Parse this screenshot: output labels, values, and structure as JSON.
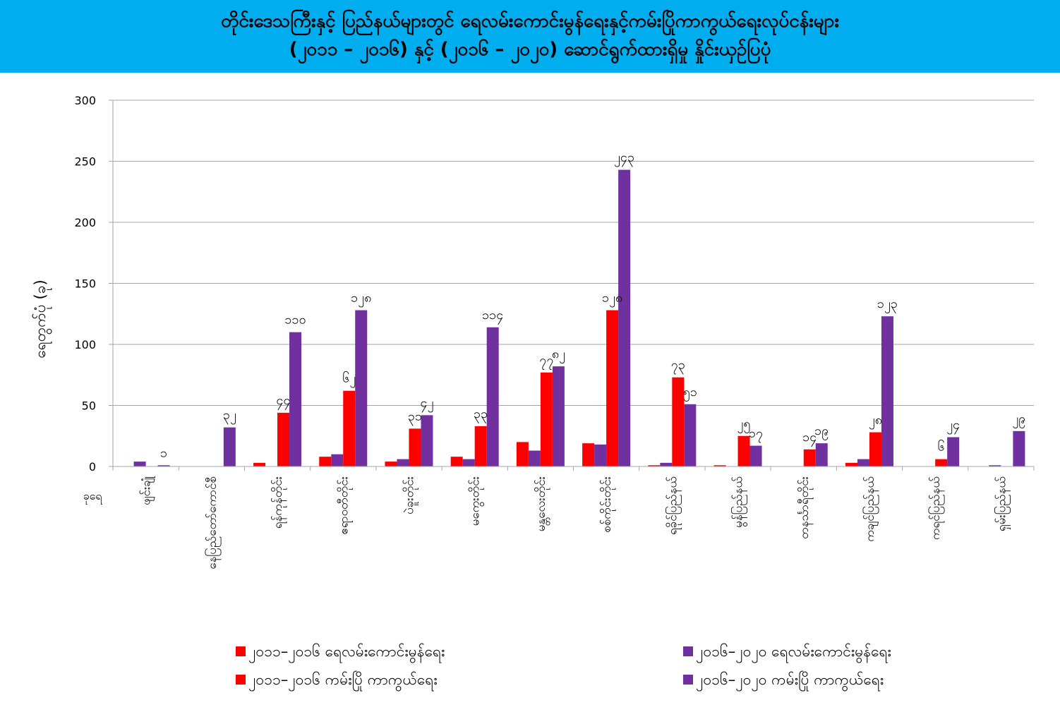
{
  "chart_data": {
    "type": "bar",
    "title": [
      "တိုင်းဒေသကြီးနှင့် ပြည်နယ်များတွင် ရေလမ်းကောင်းမွန်ရေးနှင့်ကမ်းပြိုကာကွယ်ရေးလုပ်ငန်းများ",
      "(၂၀၁၁ – ၂၀၁၆) နှင့် (၂၀၁၆ – ၂၀၂၀) ဆောင်ရွက်ထားရှိမှု နှိုင်းယှဉ်ပြပုံ"
    ],
    "ylabel": "ရေတွက်ပုံ (ခု)",
    "xlabel": "ခုရေ",
    "ylim": [
      0,
      300
    ],
    "yticks": [
      0,
      50,
      100,
      150,
      200,
      250,
      300
    ],
    "grid": true,
    "legend_position": "bottom",
    "categories": [
      "ဖျင်းချုံ",
      "နေပြည်တော်ကောင်စီ",
      "ရန်ကုန်တိုင်း",
      "ဧရာဝတီတိုင်း",
      "ပဲခူးတိုင်း",
      "မကွေးတိုင်း",
      "မန္တလေးတိုင်း",
      "စစ်ကိုင်းတိုင်း",
      "ရခိုင်ပြည်နယ်",
      "မွန်ပြည်နယ်",
      "တနင်္သာရီတိုင်း",
      "ကချင်ပြည်နယ်",
      "ကရင်ပြည်နယ်",
      "ရှမ်းပြည်နယ်"
    ],
    "series": [
      {
        "name": "၂၀၁၁–၂၀၁၆ ရေလမ်းကောင်းမွန်ရေး",
        "color": "#ff0000",
        "values": [
          0,
          0,
          3,
          8,
          4,
          8,
          20,
          19,
          1,
          1,
          0,
          3,
          0,
          0
        ]
      },
      {
        "name": "၂၀၁၆–၂၀၂၀ ရေလမ်းကောင်းမွန်ရေး",
        "color": "#7030a0",
        "values": [
          4,
          0,
          0,
          10,
          6,
          6,
          13,
          18,
          3,
          0,
          0,
          6,
          0,
          1
        ]
      },
      {
        "name": "၂၀၁၁–၂၀၁၆ ကမ်းပြို ကာကွယ်ရေး",
        "color": "#ff0000",
        "values": [
          0,
          0,
          44,
          62,
          31,
          33,
          77,
          128,
          73,
          25,
          14,
          28,
          6,
          0
        ]
      },
      {
        "name": "၂၀၁၆–၂၀၂၀ ကမ်းပြို ကာကွယ်ရေး",
        "color": "#7030a0",
        "values": [
          1,
          32,
          110,
          128,
          42,
          114,
          82,
          243,
          51,
          17,
          19,
          123,
          24,
          29
        ]
      }
    ],
    "data_labels": [
      {
        "series": 3,
        "category": 0,
        "text": "၁"
      },
      {
        "series": 3,
        "category": 1,
        "text": "၃၂"
      },
      {
        "series": 2,
        "category": 2,
        "text": "၄၄"
      },
      {
        "series": 3,
        "category": 2,
        "text": "၁၁၀"
      },
      {
        "series": 2,
        "category": 3,
        "text": "၆၂"
      },
      {
        "series": 3,
        "category": 3,
        "text": "၁၂၈"
      },
      {
        "series": 2,
        "category": 4,
        "text": "၃၁"
      },
      {
        "series": 3,
        "category": 4,
        "text": "၄၂"
      },
      {
        "series": 2,
        "category": 5,
        "text": "၃၃"
      },
      {
        "series": 3,
        "category": 5,
        "text": "၁၁၄"
      },
      {
        "series": 2,
        "category": 6,
        "text": "၇၇"
      },
      {
        "series": 3,
        "category": 6,
        "text": "၈၂"
      },
      {
        "series": 2,
        "category": 7,
        "text": "၁၂၈"
      },
      {
        "series": 3,
        "category": 7,
        "text": "၂၄၃"
      },
      {
        "series": 2,
        "category": 8,
        "text": "၇၃"
      },
      {
        "series": 3,
        "category": 8,
        "text": "၅၁"
      },
      {
        "series": 2,
        "category": 9,
        "text": "၂၅"
      },
      {
        "series": 3,
        "category": 9,
        "text": "၁၇"
      },
      {
        "series": 2,
        "category": 10,
        "text": "၁၄"
      },
      {
        "series": 3,
        "category": 10,
        "text": "၁၉"
      },
      {
        "series": 2,
        "category": 11,
        "text": "၂၈"
      },
      {
        "series": 3,
        "category": 11,
        "text": "၁၂၃"
      },
      {
        "series": 2,
        "category": 12,
        "text": "၆"
      },
      {
        "series": 3,
        "category": 12,
        "text": "၂၄"
      },
      {
        "series": 3,
        "category": 13,
        "text": "၂၉"
      }
    ]
  },
  "legend": [
    {
      "label": "၂၀၁၁–၂၀၁၆ ရေလမ်းကောင်းမွန်ရေး",
      "color": "#ff0000"
    },
    {
      "label": "၂၀၁၆–၂၀၂၀ ရေလမ်းကောင်းမွန်ရေး",
      "color": "#7030a0"
    },
    {
      "label": "၂၀၁၁–၂၀၁၆ ကမ်းပြို ကာကွယ်ရေး",
      "color": "#ff0000"
    },
    {
      "label": "၂၀၁၆–၂၀၂၀ ကမ်းပြို ကာကွယ်ရေး",
      "color": "#7030a0"
    }
  ],
  "colors": {
    "banner": "#00adef",
    "red": "#ff0000",
    "purple": "#7030a0"
  }
}
